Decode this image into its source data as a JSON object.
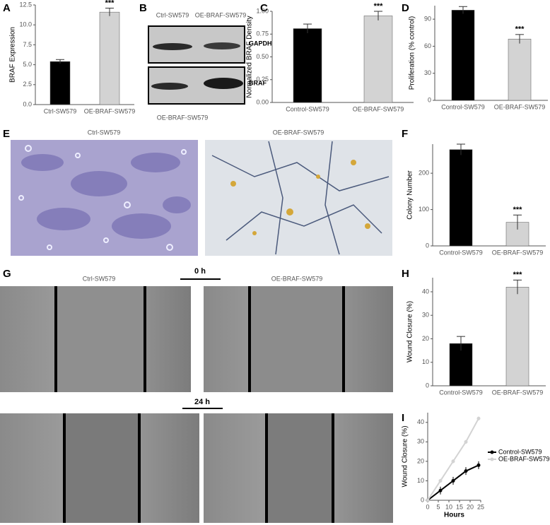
{
  "chart_data": [
    {
      "type": "bar",
      "ylabel": "BRAF Expression",
      "categories": [
        "Ctrl-SW579",
        "OE-BRAF-SW579"
      ],
      "values": [
        5.4,
        11.6
      ],
      "errors": [
        0.25,
        0.5
      ],
      "colors": [
        "#000000",
        "#d3d3d3"
      ],
      "annotation": "***",
      "ylim": [
        0,
        12.5
      ],
      "yticks": [
        {
          "value": 0,
          "label": "0.0"
        },
        2.5,
        {
          "value": 5,
          "label": "5.0"
        },
        7.5,
        {
          "value": 10,
          "label": "10.0"
        },
        12.5
      ]
    },
    {
      "type": "bar",
      "ylabel": "Normalized BRAF Density",
      "categories": [
        "Control-SW579",
        "OE-BRAF-SW579"
      ],
      "values": [
        0.81,
        0.95
      ],
      "errors": [
        0.05,
        0.05
      ],
      "colors": [
        "#000000",
        "#d3d3d3"
      ],
      "annotation": "***",
      "ylim": [
        0,
        1
      ],
      "yticks": [
        {
          "value": 0,
          "label": "0.00"
        },
        0.25,
        {
          "value": 0.5,
          "label": "0.50"
        },
        0.75,
        {
          "value": 1,
          "label": "1.00"
        }
      ]
    },
    {
      "type": "bar",
      "ylabel": "Proliferation (% control)",
      "categories": [
        "Control-SW579",
        "OE-BRAF-SW579"
      ],
      "values": [
        100,
        68
      ],
      "errors": [
        4,
        5
      ],
      "colors": [
        "#000000",
        "#d3d3d3"
      ],
      "annotation": "***",
      "ylim": [
        0,
        105
      ],
      "yticks": [
        0,
        30,
        60,
        90
      ]
    },
    {
      "type": "bar",
      "ylabel": "Colony Number",
      "categories": [
        "Control-SW579",
        "OE-BRAF-SW579"
      ],
      "values": [
        265,
        65
      ],
      "errors": [
        15,
        20
      ],
      "colors": [
        "#000000",
        "#d3d3d3"
      ],
      "annotation": "***",
      "ylim": [
        0,
        280
      ],
      "yticks": [
        0,
        100,
        200
      ]
    },
    {
      "type": "bar",
      "ylabel": "Wound Closure (%)",
      "categories": [
        "Control-SW579",
        "OE-BRAF-SW579"
      ],
      "values": [
        18,
        42
      ],
      "errors": [
        3,
        3
      ],
      "colors": [
        "#000000",
        "#d3d3d3"
      ],
      "annotation": "***",
      "ylim": [
        0,
        46
      ],
      "yticks": [
        0,
        10,
        20,
        30,
        40
      ]
    },
    {
      "type": "line",
      "xlabel": "Hours",
      "ylabel": "Wound Closure (%)",
      "x": [
        0,
        6,
        12,
        18,
        24
      ],
      "series": [
        {
          "name": "Control-SW579",
          "color": "#000000",
          "values": [
            0,
            5,
            10,
            15,
            18
          ],
          "errors": [
            0,
            2,
            2,
            2,
            2
          ]
        },
        {
          "name": "OE-BRAF-SW579",
          "color": "#d3d3d3",
          "values": [
            0,
            10,
            20,
            30,
            42
          ],
          "errors": [
            0,
            1,
            1,
            1,
            1
          ]
        }
      ],
      "xlim": [
        0,
        25
      ],
      "xticks": [
        0,
        5,
        10,
        15,
        20,
        25
      ],
      "ylim": [
        0,
        45
      ],
      "yticks": [
        0,
        10,
        20,
        30,
        40
      ],
      "legend": "right"
    }
  ],
  "panel_labels": [
    "A",
    "B",
    "C",
    "D",
    "E",
    "F",
    "G",
    "H",
    "I"
  ],
  "blot": {
    "lanes": [
      "Ctrl-SW579",
      "OE-BRAF-SW579"
    ],
    "bands": [
      "GAPDH",
      "BRAF"
    ],
    "caption": "OE-BRAF-SW579"
  },
  "staining": {
    "labels": [
      "Ctrl-SW579",
      "OE-BRAF-SW579"
    ]
  },
  "wound": {
    "labels": [
      "Ctrl-SW579",
      "OE-BRAF-SW579"
    ],
    "times": [
      "0 h",
      "24 h"
    ]
  }
}
